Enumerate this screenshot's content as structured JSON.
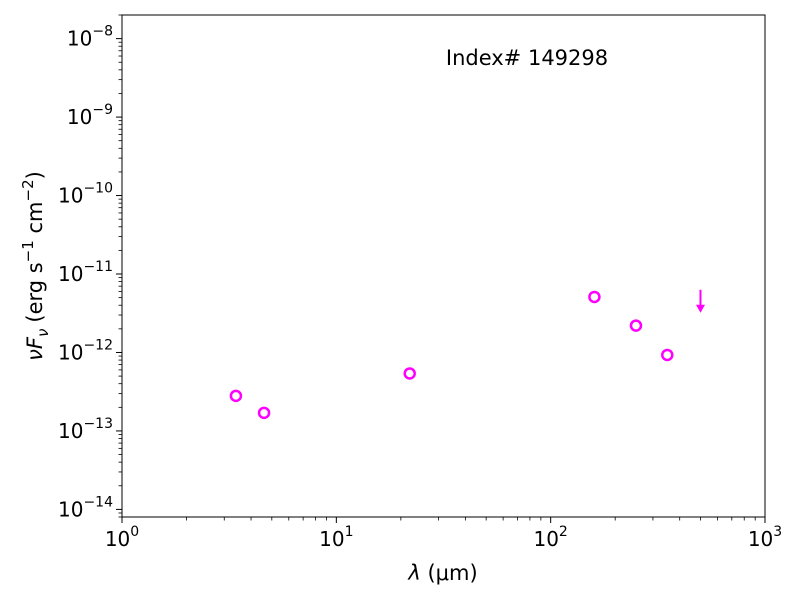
{
  "chart_data": {
    "type": "scatter",
    "title": "",
    "annotation": "Index# 149298",
    "xlabel": {
      "prefix": "λ",
      "unit": "(μm)"
    },
    "ylabel": {
      "var": "νF",
      "sub": "ν",
      "unit_pre": "(erg s",
      "exp1": "−1",
      "unit_mid": " cm",
      "exp2": "−2",
      "unit_post": ")"
    },
    "x_scale": "log",
    "y_scale": "log",
    "xlim": [
      1,
      1000
    ],
    "ylim": [
      8e-15,
      2e-08
    ],
    "x_ticks": [
      {
        "value": 1,
        "base": "10",
        "exp": "0"
      },
      {
        "value": 10,
        "base": "10",
        "exp": "1"
      },
      {
        "value": 100,
        "base": "10",
        "exp": "2"
      },
      {
        "value": 1000,
        "base": "10",
        "exp": "3"
      }
    ],
    "y_ticks": [
      {
        "value": 1e-14,
        "base": "10",
        "exp": "−14"
      },
      {
        "value": 1e-13,
        "base": "10",
        "exp": "−13"
      },
      {
        "value": 1e-12,
        "base": "10",
        "exp": "−12"
      },
      {
        "value": 1e-11,
        "base": "10",
        "exp": "−11"
      },
      {
        "value": 1e-10,
        "base": "10",
        "exp": "−10"
      },
      {
        "value": 1e-09,
        "base": "10",
        "exp": "−9"
      },
      {
        "value": 1e-08,
        "base": "10",
        "exp": "−8"
      }
    ],
    "series": [
      {
        "marker": "open-circle",
        "color": "#ff00ff",
        "points": [
          {
            "x": 3.4,
            "y": 2.8e-13
          },
          {
            "x": 4.6,
            "y": 1.7e-13
          },
          {
            "x": 22,
            "y": 5.4e-13
          },
          {
            "x": 160,
            "y": 5.1e-12
          },
          {
            "x": 250,
            "y": 2.2e-12
          },
          {
            "x": 350,
            "y": 9.3e-13
          }
        ]
      },
      {
        "marker": "upper-limit-arrow",
        "color": "#ff00ff",
        "points": [
          {
            "x": 500,
            "y": 4.3e-12
          }
        ]
      }
    ],
    "grid": false,
    "legend": "none"
  }
}
